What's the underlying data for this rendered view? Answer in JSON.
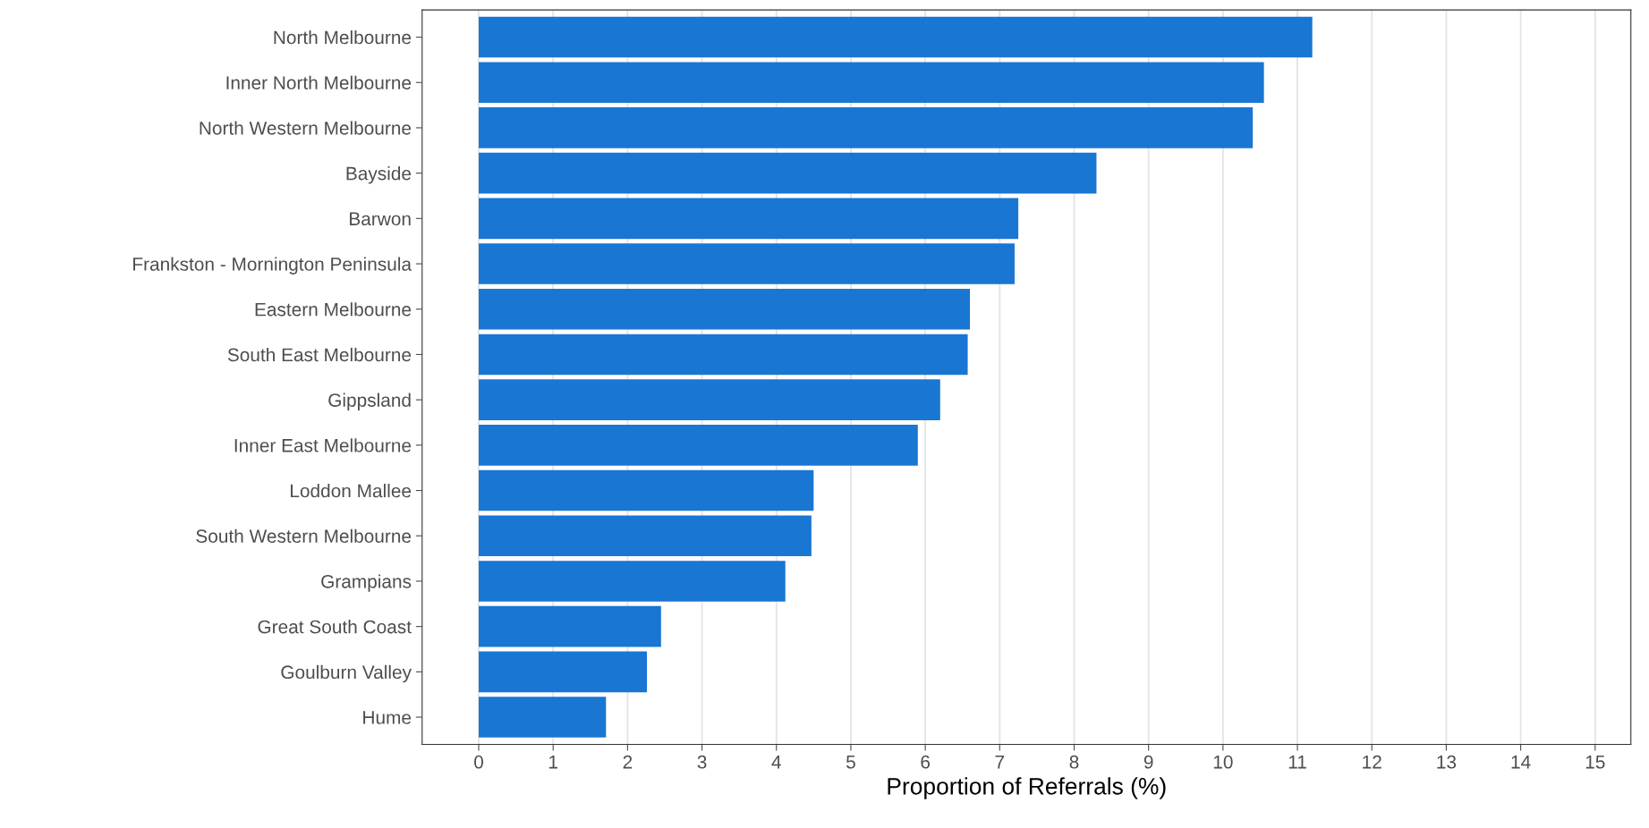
{
  "chart_data": {
    "type": "bar",
    "orientation": "horizontal",
    "xlabel": "Proportion of Referrals (%)",
    "categories": [
      "North Melbourne",
      "Inner North Melbourne",
      "North Western Melbourne",
      "Bayside",
      "Barwon",
      "Frankston - Mornington Peninsula",
      "Eastern Melbourne",
      "South East Melbourne",
      "Gippsland",
      "Inner East Melbourne",
      "Loddon Mallee",
      "South Western Melbourne",
      "Grampians",
      "Great South Coast",
      "Goulburn Valley",
      "Hume"
    ],
    "values": [
      11.2,
      10.55,
      10.4,
      8.3,
      7.25,
      7.2,
      6.6,
      6.57,
      6.2,
      5.9,
      4.5,
      4.47,
      4.12,
      2.45,
      2.26,
      1.71
    ],
    "color": "#1976d2",
    "xlim": [
      -0.76,
      15.48
    ],
    "xticks": [
      0,
      1,
      2,
      3,
      4,
      5,
      6,
      7,
      8,
      9,
      10,
      11,
      12,
      13,
      14,
      15
    ],
    "grid": "x",
    "legend": false
  }
}
